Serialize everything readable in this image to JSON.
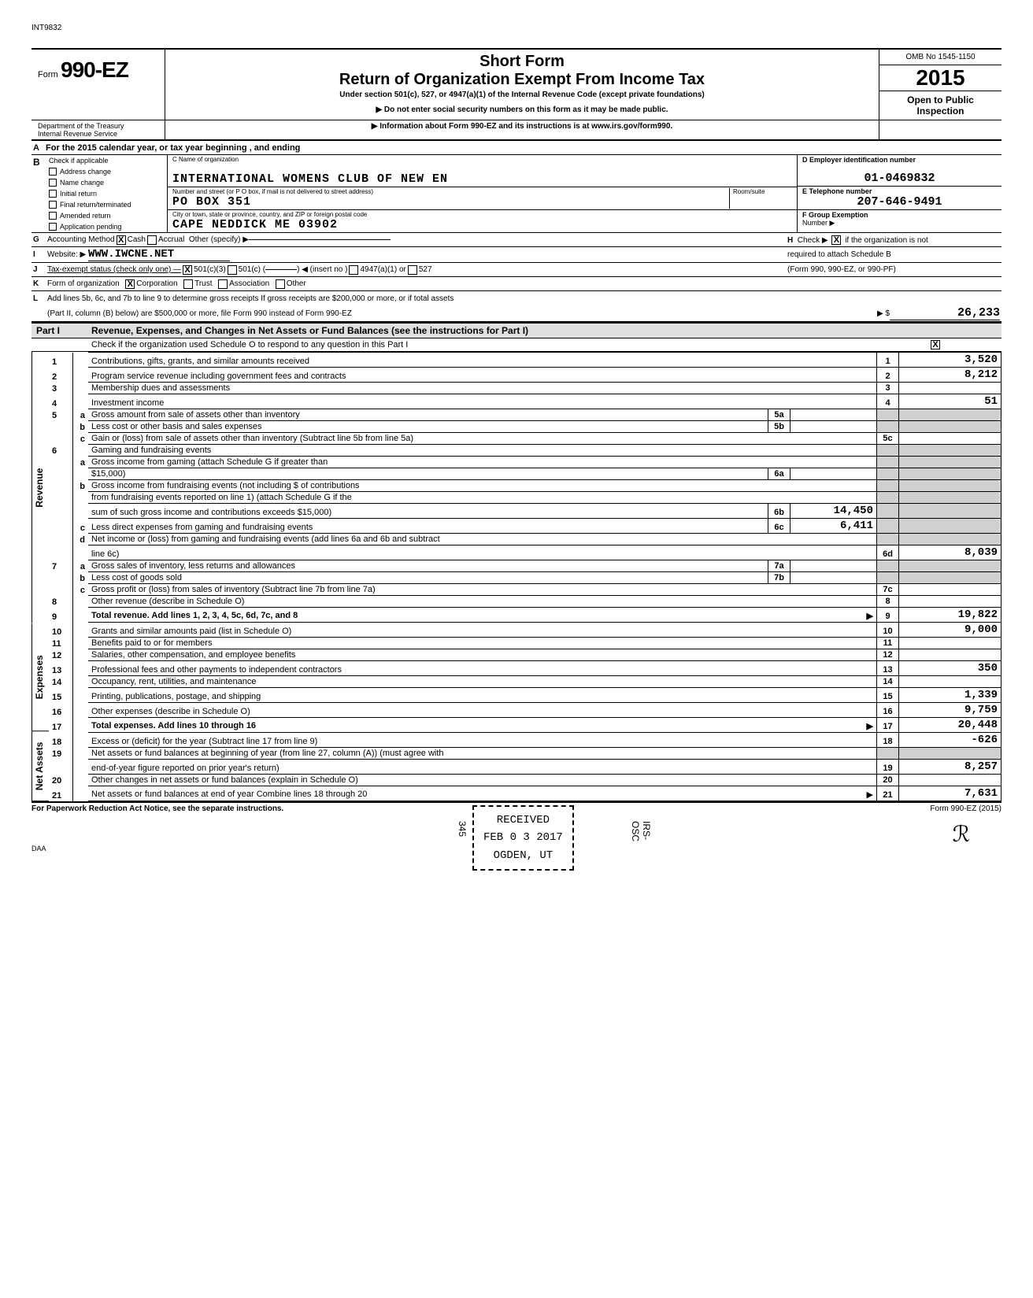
{
  "doc_id": "INT9832",
  "form": {
    "prefix": "Form",
    "number": "990-EZ",
    "title_line1": "Short Form",
    "title_line2": "Return of Organization Exempt From Income Tax",
    "subtitle": "Under section 501(c), 527, or 4947(a)(1) of the Internal Revenue Code (except private foundations)",
    "warning": "▶ Do not enter social security numbers on this form as it may be made public.",
    "info": "▶ Information about Form 990-EZ and its instructions is at www.irs.gov/form990.",
    "omb": "OMB No 1545-1150",
    "year": "2015",
    "open": "Open to Public",
    "inspection": "Inspection",
    "dept1": "Department of the Treasury",
    "dept2": "Internal Revenue Service"
  },
  "lineA": "For the 2015 calendar year, or tax year beginning                        , and ending",
  "checkboxes": {
    "b_label": "Check if applicable",
    "items": [
      "Address change",
      "Name change",
      "Initial return",
      "Final return/terminated",
      "Amended return",
      "Application pending"
    ]
  },
  "org": {
    "name_label": "C  Name of organization",
    "name": "INTERNATIONAL WOMENS CLUB OF NEW EN",
    "addr_label": "Number and street (or P O  box, if mail is not delivered to street address)",
    "room_label": "Room/suite",
    "addr": "PO BOX 351",
    "city_label": "City or town, state or province, country, and ZIP or foreign postal code",
    "city": "CAPE NEDDICK              ME  03902"
  },
  "right": {
    "ein_label": "D  Employer identification number",
    "ein": "01-0469832",
    "phone_label": "E  Telephone number",
    "phone": "207-646-9491",
    "group_label": "F  Group Exemption",
    "group_number": "Number  ▶"
  },
  "lineG": {
    "label": "Accounting Method",
    "cash": "Cash",
    "accrual": "Accrual",
    "other": "Other (specify) ▶"
  },
  "lineH": {
    "text1": "Check ▶",
    "text2": "if the organization is not",
    "text3": "required to attach Schedule B",
    "text4": "(Form 990, 990-EZ, or 990-PF)"
  },
  "lineI": {
    "label": "Website: ▶",
    "value": "WWW.IWCNE.NET"
  },
  "lineJ": {
    "label": "Tax-exempt status (check only one) —",
    "opt1": "501(c)(3)",
    "opt2": "501(c) (",
    "opt2b": ") ◀ (insert no )",
    "opt3": "4947(a)(1) or",
    "opt4": "527"
  },
  "lineK": {
    "label": "Form of organization",
    "corp": "Corporation",
    "trust": "Trust",
    "assoc": "Association",
    "other": "Other"
  },
  "lineL": {
    "text1": "Add lines 5b, 6c, and 7b to line 9 to determine gross receipts  If gross receipts are $200,000 or more, or if total assets",
    "text2": "(Part II, column (B) below) are $500,000 or more, file Form 990 instead of Form 990-EZ",
    "arrow": "▶  $",
    "amount": "26,233"
  },
  "part1": {
    "label": "Part I",
    "title": "Revenue, Expenses, and Changes in Net Assets or Fund Balances (see the instructions for Part I)",
    "check_text": "Check if the organization used Schedule O to respond to any question in this Part I"
  },
  "sections": {
    "revenue": "Revenue",
    "expenses": "Expenses",
    "netassets": "Net Assets"
  },
  "rows": [
    {
      "n": "1",
      "d": "Contributions, gifts, grants, and similar amounts received",
      "ln": "1",
      "amt": "3,520"
    },
    {
      "n": "2",
      "d": "Program service revenue including government fees and contracts",
      "ln": "2",
      "amt": "8,212"
    },
    {
      "n": "3",
      "d": "Membership dues and assessments",
      "ln": "3",
      "amt": ""
    },
    {
      "n": "4",
      "d": "Investment income",
      "ln": "4",
      "amt": "51"
    },
    {
      "n": "5a",
      "d": "Gross amount from sale of assets other than inventory",
      "in": "5a",
      "ia": ""
    },
    {
      "n": "b",
      "d": "Less  cost or other basis and sales expenses",
      "in": "5b",
      "ia": ""
    },
    {
      "n": "c",
      "d": "Gain or (loss) from sale of assets other than inventory (Subtract line 5b from line 5a)",
      "ln": "5c",
      "amt": ""
    },
    {
      "n": "6",
      "d": "Gaming and fundraising events"
    },
    {
      "n": "a",
      "d": "Gross income from gaming (attach Schedule G if greater than"
    },
    {
      "n": "",
      "d": "$15,000)",
      "in": "6a",
      "ia": ""
    },
    {
      "n": "b",
      "d": "Gross income from fundraising events (not including $                              of contributions"
    },
    {
      "n": "",
      "d": "from fundraising events reported on line 1) (attach Schedule G if the"
    },
    {
      "n": "",
      "d": "sum of such gross income and contributions exceeds $15,000)",
      "in": "6b",
      "ia": "14,450"
    },
    {
      "n": "c",
      "d": "Less  direct expenses from gaming and fundraising events",
      "in": "6c",
      "ia": "6,411"
    },
    {
      "n": "d",
      "d": "Net income or (loss) from gaming and fundraising events (add lines 6a and 6b and subtract"
    },
    {
      "n": "",
      "d": "line 6c)",
      "ln": "6d",
      "amt": "8,039"
    },
    {
      "n": "7a",
      "d": "Gross sales of inventory, less returns and allowances",
      "in": "7a",
      "ia": ""
    },
    {
      "n": "b",
      "d": "Less  cost of goods sold",
      "in": "7b",
      "ia": ""
    },
    {
      "n": "c",
      "d": "Gross profit or (loss) from sales of inventory (Subtract line 7b from line 7a)",
      "ln": "7c",
      "amt": ""
    },
    {
      "n": "8",
      "d": "Other revenue (describe in Schedule O)",
      "ln": "8",
      "amt": ""
    },
    {
      "n": "9",
      "d": "Total revenue. Add lines 1, 2, 3, 4, 5c, 6d, 7c, and 8",
      "ln": "9",
      "amt": "19,822",
      "arrow": true,
      "bold": true
    },
    {
      "n": "10",
      "d": "Grants and similar amounts paid (list in Schedule O)",
      "ln": "10",
      "amt": "9,000"
    },
    {
      "n": "11",
      "d": "Benefits paid to or for members",
      "ln": "11",
      "amt": ""
    },
    {
      "n": "12",
      "d": "Salaries, other compensation, and employee benefits",
      "ln": "12",
      "amt": ""
    },
    {
      "n": "13",
      "d": "Professional fees and other payments to independent contractors",
      "ln": "13",
      "amt": "350"
    },
    {
      "n": "14",
      "d": "Occupancy, rent, utilities, and maintenance",
      "ln": "14",
      "amt": ""
    },
    {
      "n": "15",
      "d": "Printing, publications, postage, and shipping",
      "ln": "15",
      "amt": "1,339"
    },
    {
      "n": "16",
      "d": "Other expenses (describe in Schedule O)",
      "ln": "16",
      "amt": "9,759"
    },
    {
      "n": "17",
      "d": "Total expenses. Add lines 10 through 16",
      "ln": "17",
      "amt": "20,448",
      "arrow": true,
      "bold": true
    },
    {
      "n": "18",
      "d": "Excess or (deficit) for the year (Subtract line 17 from line 9)",
      "ln": "18",
      "amt": "-626"
    },
    {
      "n": "19",
      "d": "Net assets or fund balances at beginning of year (from line 27, column (A)) (must agree with"
    },
    {
      "n": "",
      "d": "end-of-year figure reported on prior year's return)",
      "ln": "19",
      "amt": "8,257"
    },
    {
      "n": "20",
      "d": "Other changes in net assets or fund balances (explain in Schedule O)",
      "ln": "20",
      "amt": ""
    },
    {
      "n": "21",
      "d": "Net assets or fund balances at end of year  Combine lines 18 through 20",
      "ln": "21",
      "amt": "7,631",
      "arrow": true
    }
  ],
  "footer": {
    "paperwork": "For Paperwork Reduction Act Notice, see the separate instructions.",
    "form_ref": "Form 990-EZ (2015)",
    "daa": "DAA"
  },
  "stamp": {
    "received": "RECEIVED",
    "date": "FEB 0 3 2017",
    "ogden": "OGDEN, UT",
    "side1": "345",
    "side2": "IRS-OSC"
  },
  "colors": {
    "bg": "#ffffff",
    "text": "#000000",
    "shade": "#e0e0e0",
    "shade2": "#d0d0d0"
  }
}
